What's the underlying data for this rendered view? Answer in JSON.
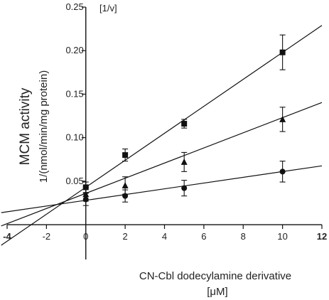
{
  "chart_data": {
    "type": "scatter",
    "title": "",
    "y_unit_label": "[1/v]",
    "ylabel": "MCM activity",
    "ylabel_sub": "1/(nmol/min/mg protein)",
    "xlabel": "CN-Cbl dodecylamine derivative",
    "xlabel_unit": "[μM]",
    "xlim": [
      -4,
      12
    ],
    "ylim": [
      -0.04,
      0.25
    ],
    "x_ticks": [
      -4,
      -2,
      0,
      2,
      4,
      6,
      8,
      10,
      12
    ],
    "x_tick_labels": [
      "-4",
      "-2",
      "0",
      "2",
      "4",
      "6",
      "8",
      "10",
      "12"
    ],
    "y_ticks": [
      0.05,
      0.1,
      0.15,
      0.2,
      0.25
    ],
    "y_tick_labels": [
      "0.05",
      "0.10",
      "0.15",
      "0.20",
      "0.25"
    ],
    "grid": false,
    "legend": "none",
    "series": [
      {
        "marker": "square",
        "x": [
          0,
          2,
          5,
          10
        ],
        "y": [
          0.043,
          0.08,
          0.116,
          0.198
        ],
        "err": [
          0.006,
          0.007,
          0.005,
          0.02
        ],
        "fit": {
          "slope": 0.0155,
          "intercept": 0.043
        }
      },
      {
        "marker": "triangle",
        "x": [
          0,
          2,
          5,
          10
        ],
        "y": [
          0.035,
          0.045,
          0.072,
          0.121
        ],
        "err": [
          0.008,
          0.01,
          0.011,
          0.014
        ],
        "fit": {
          "slope": 0.0087,
          "intercept": 0.036
        }
      },
      {
        "marker": "circle",
        "x": [
          0,
          2,
          5,
          10
        ],
        "y": [
          0.029,
          0.033,
          0.042,
          0.061
        ],
        "err": [
          0.007,
          0.007,
          0.009,
          0.012
        ],
        "fit": {
          "slope": 0.0033,
          "intercept": 0.028
        }
      }
    ],
    "fit_x_range": [
      -4.3,
      12
    ]
  }
}
